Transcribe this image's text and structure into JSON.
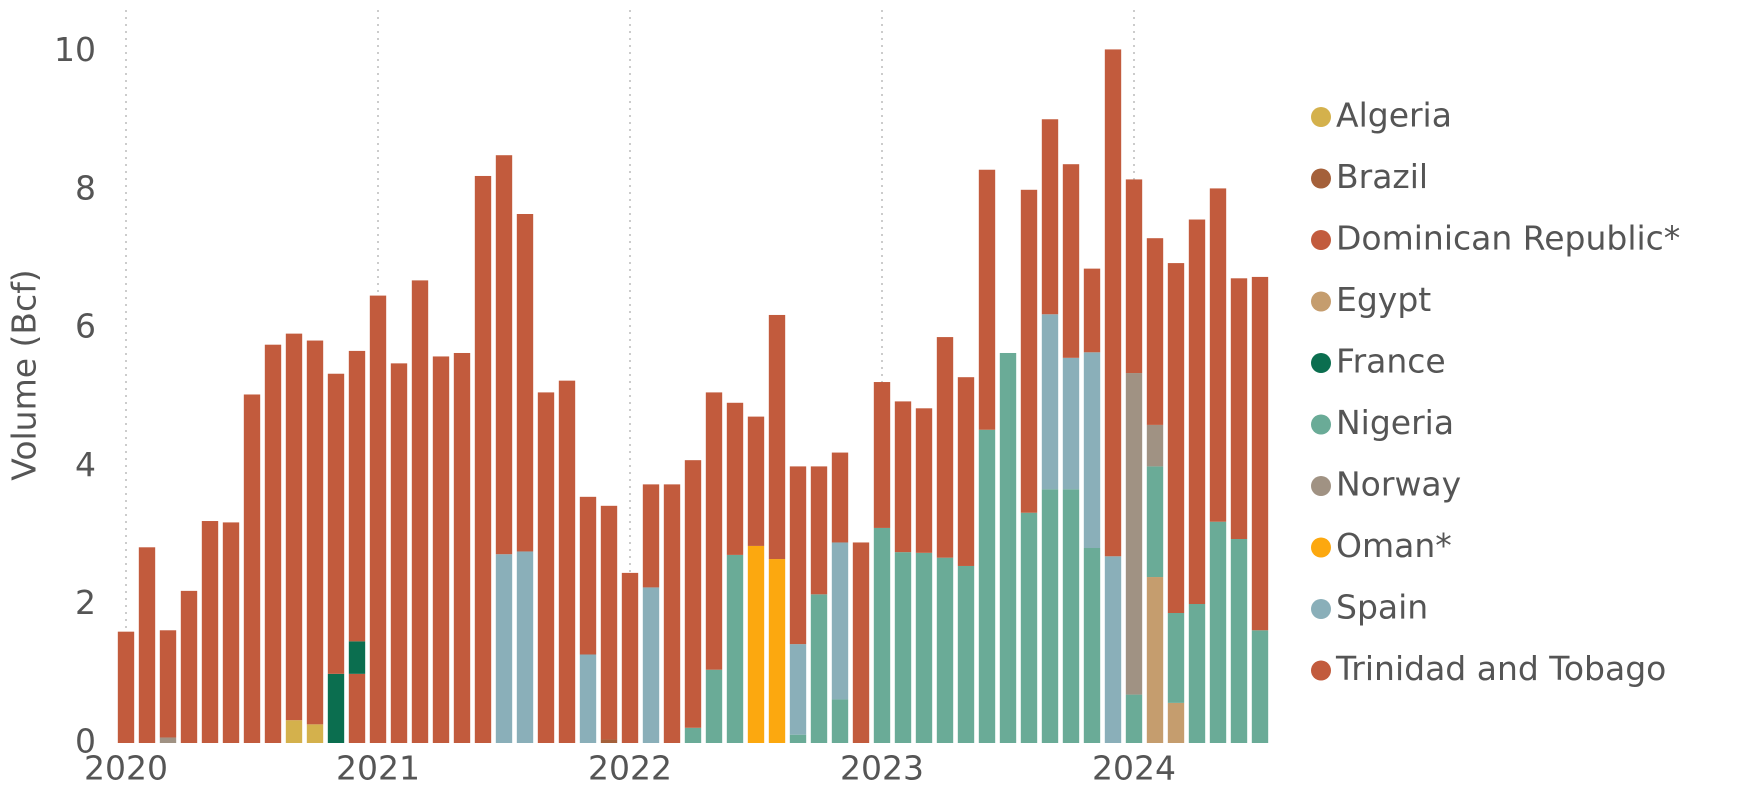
{
  "chart_data": {
    "type": "stacked_bar",
    "y_label": "Volume (Bcf)",
    "categories": [
      "2020",
      null,
      null,
      null,
      null,
      null,
      null,
      null,
      null,
      null,
      null,
      null,
      "2021",
      null,
      null,
      null,
      null,
      null,
      null,
      null,
      null,
      null,
      null,
      null,
      "2022",
      null,
      null,
      null,
      null,
      null,
      null,
      null,
      null,
      null,
      null,
      null,
      "2023",
      null,
      null,
      null,
      null,
      null,
      null,
      null,
      null,
      null,
      null,
      null,
      "2024",
      null,
      null,
      null,
      null,
      null,
      null
    ],
    "series": [
      {
        "name": "Algeria",
        "color": "#d4b14c",
        "values": [
          0,
          0,
          0,
          0,
          0,
          0,
          0,
          0,
          0.33,
          0.27,
          0,
          0,
          0,
          0,
          0,
          0,
          0,
          0,
          0,
          0,
          0,
          0,
          0,
          0,
          0,
          0,
          0,
          0,
          0,
          0,
          0,
          0,
          0,
          0,
          0,
          0,
          0,
          0,
          0,
          0,
          0,
          0,
          0,
          0,
          0,
          0,
          0,
          0,
          0,
          0,
          0,
          0,
          0,
          0,
          0
        ]
      },
      {
        "name": "Brazil",
        "color": "#a4603a",
        "values": [
          0,
          0,
          0,
          0,
          0,
          0,
          0,
          0,
          0,
          0,
          0,
          0,
          0,
          0,
          0,
          0,
          0,
          0,
          0,
          0,
          0,
          0,
          0,
          0.05,
          0,
          0,
          0,
          0,
          0,
          0,
          0,
          0,
          0,
          0,
          0,
          0,
          0,
          0,
          0,
          0,
          0,
          0,
          0,
          0,
          0,
          0,
          0,
          0,
          0,
          0,
          0,
          0,
          0,
          0,
          0
        ]
      },
      {
        "name": "Dominican Republic*",
        "color": "#c25b3d",
        "values": [
          0,
          0,
          0,
          0,
          0,
          0,
          0,
          0,
          0,
          0,
          0,
          1.0,
          0,
          0,
          0,
          0,
          0,
          0,
          0,
          0,
          0,
          0,
          0,
          0,
          0,
          0,
          0,
          0,
          0,
          0,
          0,
          0,
          0,
          0,
          0,
          0,
          0,
          0,
          0,
          0,
          0,
          0,
          0,
          0,
          0,
          0,
          0,
          0,
          0,
          0,
          0,
          0,
          0,
          0,
          0
        ]
      },
      {
        "name": "Egypt",
        "color": "#c59d6e",
        "values": [
          0,
          0,
          0,
          0,
          0,
          0,
          0,
          0,
          0,
          0,
          0,
          0,
          0,
          0,
          0,
          0,
          0,
          0,
          0,
          0,
          0,
          0,
          0,
          0,
          0,
          0,
          0,
          0,
          0,
          0,
          0,
          0,
          0,
          0,
          0,
          0,
          0,
          0,
          0,
          0,
          0,
          0,
          0,
          0,
          0,
          0,
          0,
          0,
          0,
          2.4,
          0.58,
          0,
          0,
          0,
          0
        ]
      },
      {
        "name": "France",
        "color": "#0b6e4f",
        "values": [
          0,
          0,
          0,
          0,
          0,
          0,
          0,
          0,
          0,
          0,
          1.0,
          0.47,
          0,
          0,
          0,
          0,
          0,
          0,
          0,
          0,
          0,
          0,
          0,
          0,
          0,
          0,
          0,
          0,
          0,
          0,
          0,
          0,
          0,
          0,
          0,
          0,
          0,
          0,
          0,
          0,
          0,
          0,
          0,
          0,
          0,
          0,
          0,
          0,
          0,
          0,
          0,
          0,
          0,
          0,
          0
        ]
      },
      {
        "name": "Nigeria",
        "color": "#6aab97",
        "values": [
          0,
          0,
          0,
          0,
          0,
          0,
          0,
          0,
          0,
          0,
          0,
          0,
          0,
          0,
          0,
          0,
          0,
          0,
          0,
          0,
          0,
          0,
          0,
          0,
          0,
          0,
          0,
          0.22,
          1.06,
          2.72,
          0,
          0,
          0.12,
          2.15,
          0.63,
          0,
          3.11,
          2.76,
          2.75,
          2.68,
          2.56,
          4.53,
          5.64,
          3.33,
          3.67,
          3.67,
          2.82,
          0,
          0.7,
          1.6,
          1.3,
          2.01,
          3.2,
          2.95,
          1.63
        ]
      },
      {
        "name": "Norway",
        "color": "#a09283",
        "values": [
          0,
          0,
          0.08,
          0,
          0,
          0,
          0,
          0,
          0,
          0,
          0,
          0,
          0,
          0,
          0,
          0,
          0,
          0,
          0,
          0,
          0,
          0,
          0,
          0,
          0,
          0,
          0,
          0,
          0,
          0,
          0,
          0,
          0,
          0,
          0,
          0,
          0,
          0,
          0,
          0,
          0,
          0,
          0,
          0,
          0,
          0,
          0,
          0,
          4.65,
          0.6,
          0,
          0,
          0,
          0,
          0
        ]
      },
      {
        "name": "Oman*",
        "color": "#fca80f",
        "values": [
          0,
          0,
          0,
          0,
          0,
          0,
          0,
          0,
          0,
          0,
          0,
          0,
          0,
          0,
          0,
          0,
          0,
          0,
          0,
          0,
          0,
          0,
          0,
          0,
          0,
          0,
          0,
          0,
          0,
          0,
          2.85,
          2.66,
          0,
          0,
          0,
          0,
          0,
          0,
          0,
          0,
          0,
          0,
          0,
          0,
          0,
          0,
          0,
          0,
          0,
          0,
          0,
          0,
          0,
          0,
          0
        ]
      },
      {
        "name": "Spain",
        "color": "#8aafb9",
        "values": [
          0,
          0,
          0,
          0,
          0,
          0,
          0,
          0,
          0,
          0,
          0,
          0,
          0,
          0,
          0,
          0,
          0,
          0,
          2.73,
          2.77,
          0,
          0,
          1.28,
          0,
          0,
          2.25,
          0,
          0,
          0,
          0,
          0,
          0,
          1.31,
          0,
          2.27,
          0,
          0,
          0,
          0,
          0,
          0,
          0,
          0,
          0,
          2.53,
          1.9,
          2.83,
          2.7,
          0,
          0,
          0,
          0,
          0,
          0,
          0
        ]
      },
      {
        "name": "Trinidad and Tobago",
        "color": "#c25b3d",
        "values": [
          1.61,
          2.83,
          1.55,
          2.2,
          3.21,
          3.19,
          5.04,
          5.76,
          5.59,
          5.55,
          4.34,
          4.2,
          6.47,
          5.49,
          6.69,
          5.59,
          5.64,
          8.2,
          5.77,
          4.88,
          5.07,
          5.24,
          2.28,
          3.38,
          2.46,
          1.49,
          3.74,
          3.87,
          4.01,
          2.2,
          1.87,
          3.53,
          2.57,
          1.85,
          1.3,
          2.9,
          2.11,
          2.18,
          2.09,
          3.19,
          2.73,
          3.76,
          0,
          4.67,
          2.82,
          2.8,
          1.21,
          7.33,
          2.8,
          2.7,
          5.06,
          5.56,
          4.82,
          3.77,
          5.11
        ]
      }
    ],
    "ylim": [
      0,
      10.6
    ],
    "yticks": [
      0,
      2,
      4,
      6,
      8,
      10
    ],
    "grid": true,
    "legend": "right"
  }
}
